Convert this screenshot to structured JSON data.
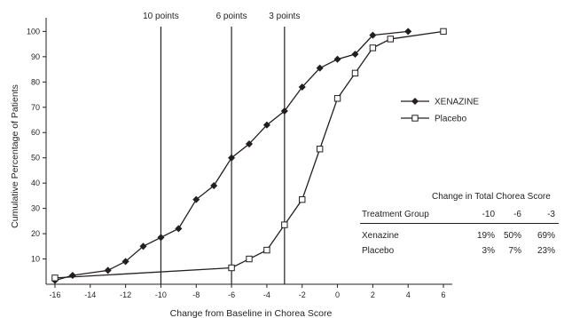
{
  "chart_data": {
    "type": "line",
    "xlabel": "Change from Baseline in Chorea Score",
    "ylabel": "Cumulative Percentage of Patients",
    "xlim": [
      -16.5,
      6.5
    ],
    "ylim": [
      0,
      104
    ],
    "xticks": [
      -16,
      -14,
      -12,
      -10,
      -8,
      -6,
      -4,
      -2,
      0,
      2,
      4,
      6
    ],
    "yticks": [
      10,
      20,
      30,
      40,
      50,
      60,
      70,
      80,
      90,
      100
    ],
    "grid": false,
    "legend_position": "right",
    "series": [
      {
        "name": "XENAZINE",
        "marker": "filled-diamond",
        "color": "#231f20",
        "x": [
          -16,
          -15,
          -13,
          -12,
          -11,
          -10,
          -9,
          -8,
          -7,
          -6,
          -5,
          -4,
          -3,
          -2,
          -1,
          0,
          1,
          2,
          4
        ],
        "y": [
          1.5,
          3.5,
          5.5,
          9,
          15,
          18.5,
          22,
          33.5,
          39,
          50,
          55.5,
          63,
          68.5,
          78,
          85.5,
          89,
          91,
          98.5,
          100
        ]
      },
      {
        "name": "Placebo",
        "marker": "open-square",
        "color": "#231f20",
        "x": [
          -16,
          -6,
          -5,
          -4,
          -3,
          -2,
          -1,
          0,
          1,
          2,
          3,
          6
        ],
        "y": [
          2.5,
          6.5,
          10,
          13.5,
          23.5,
          33.5,
          53.5,
          73.5,
          83.5,
          93.5,
          97,
          100
        ]
      }
    ],
    "reference_lines": [
      {
        "x": -10,
        "label": "10 points"
      },
      {
        "x": -6,
        "label": "6 points"
      },
      {
        "x": -3,
        "label": "3 points"
      }
    ]
  },
  "table": {
    "title": "Change in Total Chorea Score",
    "group_header": "Treatment Group",
    "columns": [
      "-10",
      "-6",
      "-3"
    ],
    "rows": [
      {
        "label": "Xenazine",
        "values": [
          "19%",
          "50%",
          "69%"
        ]
      },
      {
        "label": "Placebo",
        "values": [
          "3%",
          "7%",
          "23%"
        ]
      }
    ]
  }
}
